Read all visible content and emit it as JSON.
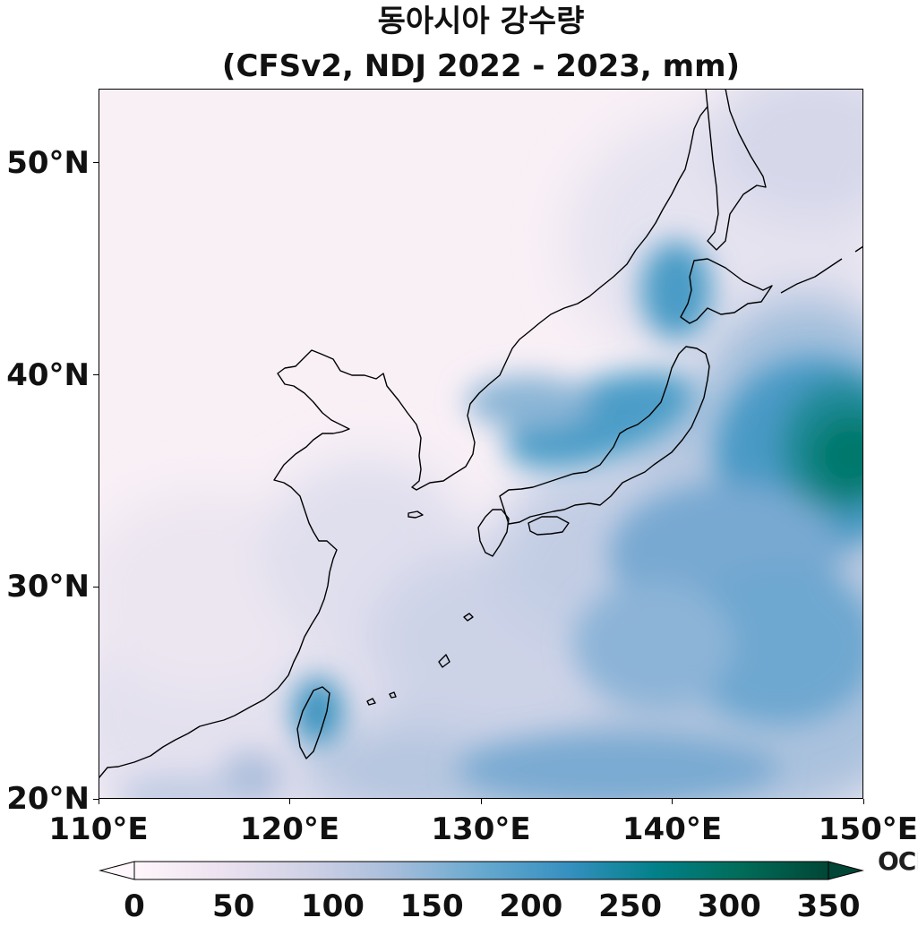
{
  "title": {
    "line1": "동아시아 강수량",
    "line2": "(CFSv2, NDJ 2022 - 2023, mm)"
  },
  "map": {
    "lon_range": [
      110,
      150
    ],
    "lat_range": [
      20,
      53.5
    ],
    "lat_ticks": [
      {
        "value": 50,
        "label": "50°N"
      },
      {
        "value": 40,
        "label": "40°N"
      },
      {
        "value": 30,
        "label": "30°N"
      },
      {
        "value": 20,
        "label": "20°N"
      }
    ],
    "lon_ticks": [
      {
        "value": 110,
        "label": "110°E"
      },
      {
        "value": 120,
        "label": "120°E"
      },
      {
        "value": 130,
        "label": "130°E"
      },
      {
        "value": 140,
        "label": "140°E"
      },
      {
        "value": 150,
        "label": "150°E"
      }
    ],
    "precip_hotspots_mm": [
      {
        "lon": 148,
        "lat": 36.5,
        "value": 300
      },
      {
        "lon": 146,
        "lat": 39,
        "value": 230
      },
      {
        "lon": 137,
        "lat": 37.5,
        "value": 215
      },
      {
        "lon": 141,
        "lat": 43.5,
        "value": 200
      },
      {
        "lon": 121.5,
        "lat": 24,
        "value": 205
      },
      {
        "lon": 140,
        "lat": 28,
        "value": 170
      },
      {
        "lon": 145,
        "lat": 30,
        "value": 180
      }
    ]
  },
  "colorbar": {
    "min": 0,
    "max": 350,
    "extend": "both",
    "colors": [
      "#fff7fb",
      "#ece2f0",
      "#d0d1e6",
      "#a6bddb",
      "#67a9cf",
      "#3690c0",
      "#02818a",
      "#016c59",
      "#014636"
    ],
    "ticks": [
      {
        "value": 0,
        "label": "0"
      },
      {
        "value": 50,
        "label": "50"
      },
      {
        "value": 100,
        "label": "100"
      },
      {
        "value": 150,
        "label": "150"
      },
      {
        "value": 200,
        "label": "200"
      },
      {
        "value": 250,
        "label": "250"
      },
      {
        "value": 300,
        "label": "300"
      },
      {
        "value": 350,
        "label": "350"
      }
    ]
  },
  "logo": {
    "text": "OCPC"
  }
}
